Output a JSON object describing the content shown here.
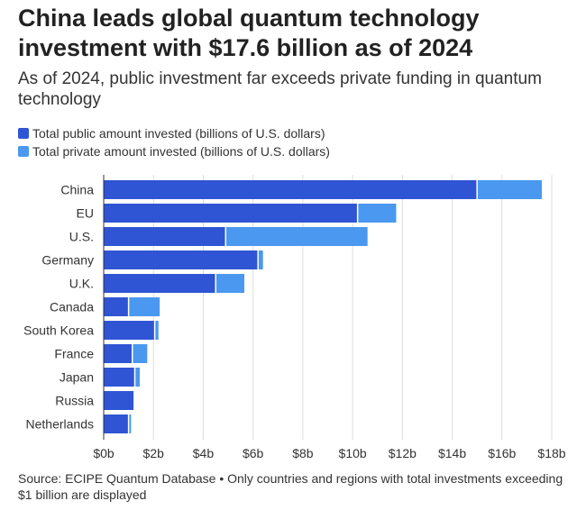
{
  "title": "China leads global quantum technology investment with $17.6 billion as of 2024",
  "subtitle": "As of 2024, public investment far exceeds private funding in quantum technology",
  "source": "Source: ECIPE Quantum Database • Only countries and regions with total investments exceeding $1 billion are displayed",
  "colors": {
    "public": "#2f55d4",
    "private": "#4a98ef",
    "grid": "#dddddd",
    "axis": "#333333"
  },
  "legend": [
    {
      "label": "Total public amount invested (billions of U.S. dollars)",
      "color": "#2f55d4"
    },
    {
      "label": "Total private amount invested (billions of U.S. dollars)",
      "color": "#4a98ef"
    }
  ],
  "chart_data": {
    "type": "bar",
    "orientation": "horizontal",
    "stacked": true,
    "categories": [
      "China",
      "EU",
      "U.S.",
      "Germany",
      "U.K.",
      "Canada",
      "South Korea",
      "France",
      "Japan",
      "Russia",
      "Netherlands"
    ],
    "series": [
      {
        "name": "Total public amount invested (billions of U.S. dollars)",
        "values": [
          15.0,
          10.2,
          4.9,
          6.2,
          4.5,
          1.0,
          2.05,
          1.15,
          1.25,
          1.2,
          1.0
        ]
      },
      {
        "name": "Total private amount invested (billions of U.S. dollars)",
        "values": [
          2.6,
          1.55,
          5.7,
          0.2,
          1.15,
          1.25,
          0.15,
          0.6,
          0.2,
          0.0,
          0.1
        ]
      }
    ],
    "xlim": [
      0,
      18
    ],
    "xticks": [
      0,
      2,
      4,
      6,
      8,
      10,
      12,
      14,
      16,
      18
    ],
    "xtick_labels": [
      "$0b",
      "$2b",
      "$4b",
      "$6b",
      "$8b",
      "$10b",
      "$12b",
      "$14b",
      "$16b",
      "$18b"
    ],
    "grid": "vertical",
    "legend_position": "top-left"
  }
}
